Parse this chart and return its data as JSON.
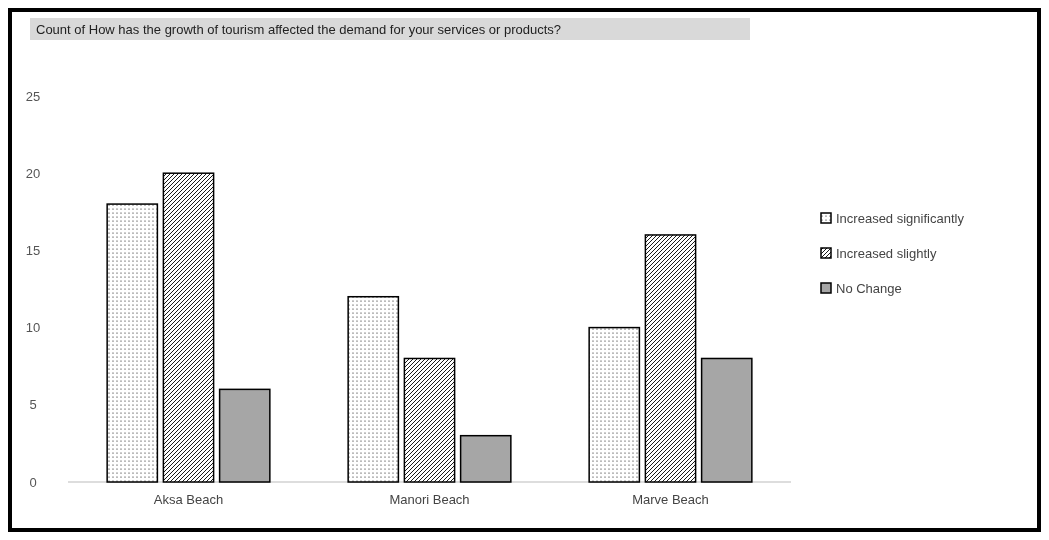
{
  "chart_data": {
    "type": "bar",
    "title": "Count of How has the growth of tourism affected the demand for your services or products?",
    "categories": [
      "Aksa Beach",
      "Manori Beach",
      "Marve Beach"
    ],
    "series": [
      {
        "name": "Increased significantly",
        "color": "#000000",
        "values": [
          18,
          12,
          10
        ]
      },
      {
        "name": "Increased slightly",
        "color": "#000000",
        "values": [
          20,
          8,
          16
        ]
      },
      {
        "name": "No Change",
        "color": "#a6a6a6",
        "values": [
          6,
          3,
          8
        ]
      }
    ],
    "ylim": [
      0,
      25
    ],
    "yticks": [
      0,
      5,
      10,
      15,
      20,
      25
    ],
    "grid": false,
    "legend": "right"
  }
}
